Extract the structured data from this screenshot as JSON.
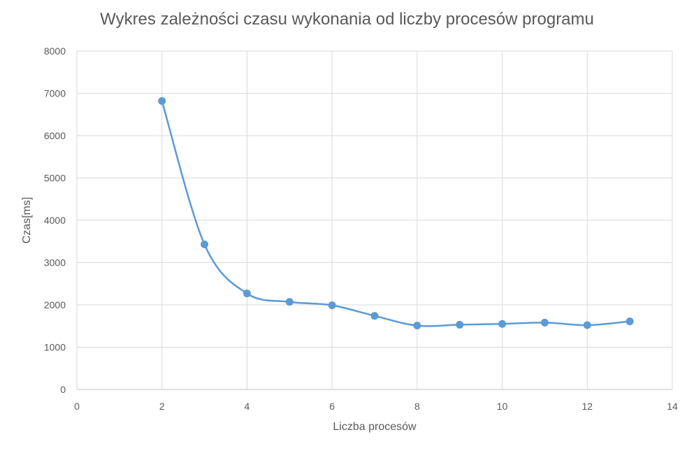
{
  "chart_data": {
    "type": "scatter",
    "title": "Wykres zależności czasu wykonania od liczby procesów programu",
    "xlabel": "Liczba procesów",
    "ylabel": "Czas[ms]",
    "xlim": [
      0,
      14
    ],
    "ylim": [
      0,
      8000
    ],
    "xticks": [
      0,
      2,
      4,
      6,
      8,
      10,
      12,
      14
    ],
    "yticks": [
      0,
      1000,
      2000,
      3000,
      4000,
      5000,
      6000,
      7000,
      8000
    ],
    "grid": true,
    "smooth_line": true,
    "series": [
      {
        "color": "#5b9bd5",
        "points": [
          {
            "x": 2,
            "y": 6820
          },
          {
            "x": 3,
            "y": 3430
          },
          {
            "x": 4,
            "y": 2270
          },
          {
            "x": 5,
            "y": 2070
          },
          {
            "x": 6,
            "y": 1990
          },
          {
            "x": 7,
            "y": 1740
          },
          {
            "x": 8,
            "y": 1510
          },
          {
            "x": 9,
            "y": 1530
          },
          {
            "x": 10,
            "y": 1550
          },
          {
            "x": 11,
            "y": 1580
          },
          {
            "x": 12,
            "y": 1520
          },
          {
            "x": 13,
            "y": 1610
          }
        ]
      }
    ]
  }
}
